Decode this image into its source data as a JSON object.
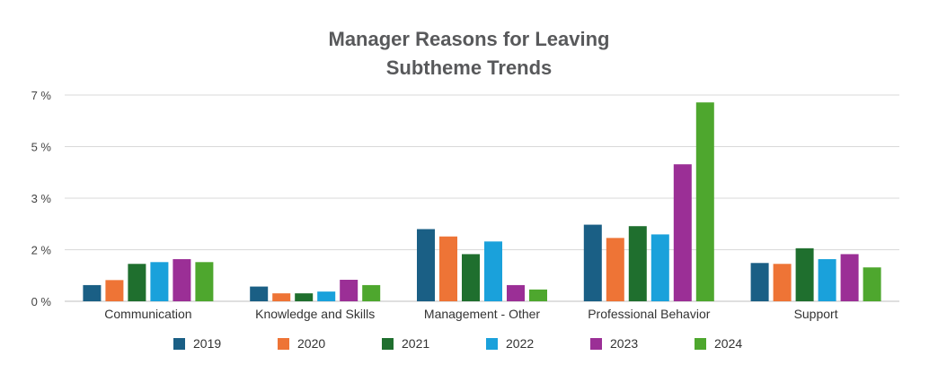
{
  "chart_data": {
    "type": "bar",
    "title_line1": "Manager Reasons for Leaving",
    "title_line2": "Subtheme Trends",
    "categories": [
      "Communication",
      "Knowledge and Skills",
      "Management - Other",
      "Professional Behavior",
      "Support"
    ],
    "y_tick_labels": [
      "0 %",
      "2 %",
      "3 %",
      "5 %",
      "7 %"
    ],
    "ylim": [
      0,
      7
    ],
    "grid": true,
    "legend_position": "bottom",
    "series": [
      {
        "name": "2019",
        "color": "#1a5f85",
        "values": [
          0.55,
          0.5,
          2.45,
          2.6,
          1.3
        ]
      },
      {
        "name": "2020",
        "color": "#ee7436",
        "values": [
          0.72,
          0.27,
          2.2,
          2.15,
          1.27
        ]
      },
      {
        "name": "2021",
        "color": "#1f6f2e",
        "values": [
          1.27,
          0.27,
          1.6,
          2.55,
          1.8
        ]
      },
      {
        "name": "2022",
        "color": "#1aa1db",
        "values": [
          1.33,
          0.33,
          2.03,
          2.27,
          1.43
        ]
      },
      {
        "name": "2023",
        "color": "#9b2f96",
        "values": [
          1.43,
          0.73,
          0.55,
          4.65,
          1.6
        ]
      },
      {
        "name": "2024",
        "color": "#4ea72e",
        "values": [
          1.33,
          0.55,
          0.4,
          6.75,
          1.15
        ]
      }
    ]
  }
}
